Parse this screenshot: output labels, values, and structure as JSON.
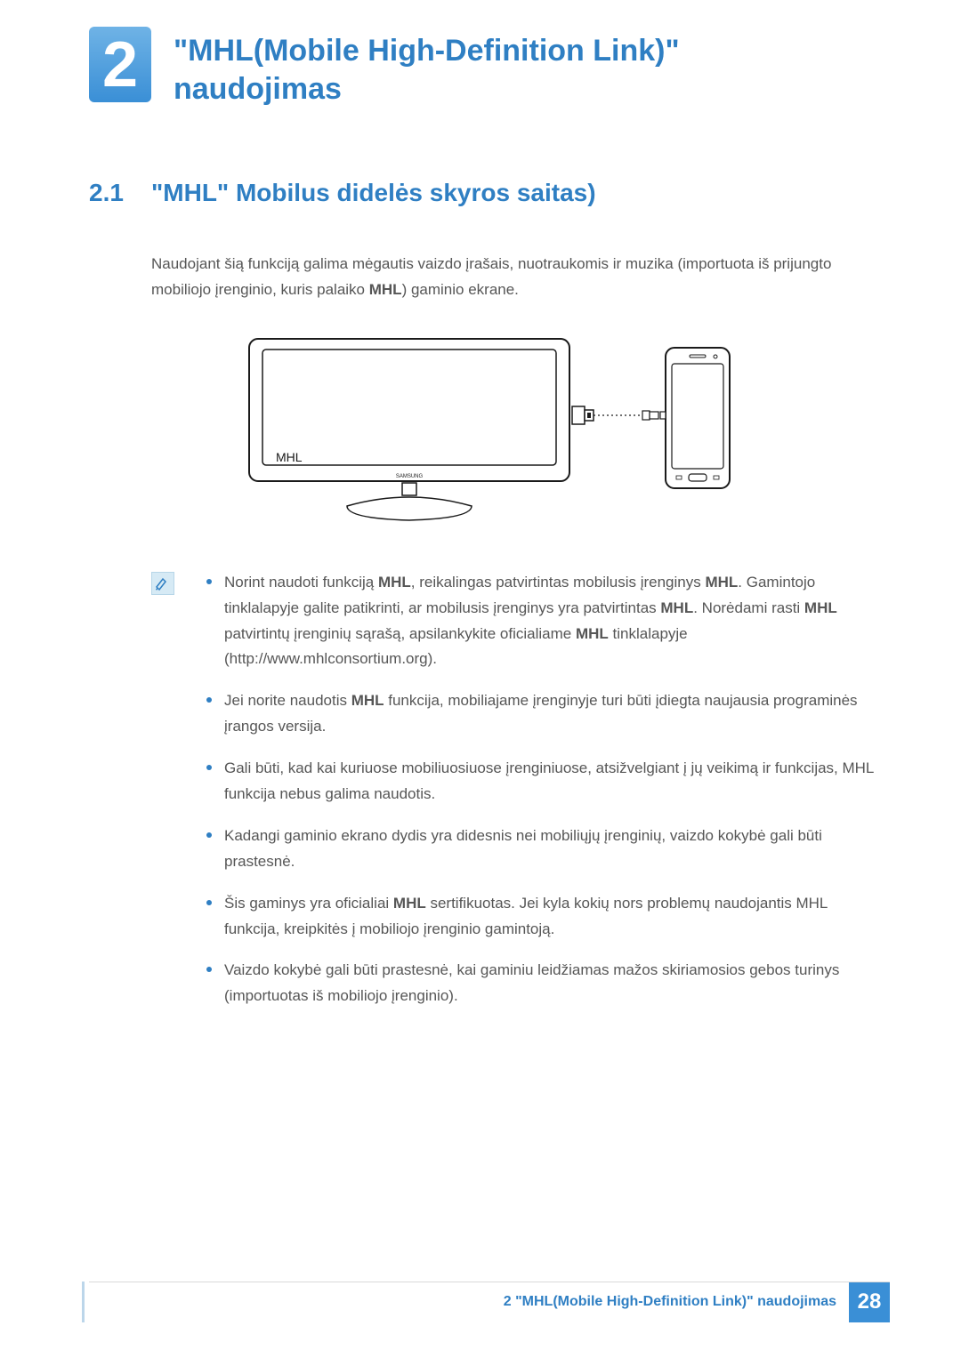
{
  "colors": {
    "accent_text": "#2f7fc3",
    "badge_bg": "#3a8fd6",
    "badge_bg_light": "#6fb3e6",
    "body_text": "#565656",
    "bullet": "#2f7fc3",
    "footer_text": "#2f7fc3",
    "footer_page_bg": "#3a8fd6",
    "left_accent": "#bcd6ea",
    "diagram_stroke": "#1a1a1a",
    "diagram_fill": "#ffffff"
  },
  "chapter": {
    "number": "2",
    "title_line1": "\"MHL(Mobile High-Definition Link)\"",
    "title_line2": "naudojimas"
  },
  "section": {
    "number": "2.1",
    "title": "\"MHL\" Mobilus didelės skyros saitas)"
  },
  "intro": {
    "pre": "Naudojant šią funkciją galima mėgautis vaizdo įrašais, nuotraukomis ir muzika (importuota iš prijungto mobiliojo įrenginio, kuris palaiko ",
    "bold": "MHL",
    "post": ") gaminio ekrane."
  },
  "diagram": {
    "port_label": "MHL",
    "brand_label": "SAMSUNG"
  },
  "notes": [
    "Norint naudoti funkciją <b>MHL</b>, reikalingas patvirtintas mobilusis įrenginys <b>MHL</b>. Gamintojo tinklalapyje galite patikrinti, ar mobilusis įrenginys yra patvirtintas <b>MHL</b>. Norėdami rasti <b>MHL</b> patvirtintų įrenginių sąrašą, apsilankykite oficialiame <b>MHL</b> tinklalapyje (http://www.mhlconsortium.org).",
    "Jei norite naudotis <b>MHL</b> funkcija, mobiliajame įrenginyje turi būti įdiegta naujausia programinės įrangos versija.",
    "Gali būti, kad kai kuriuose mobiliuosiuose įrenginiuose, atsižvelgiant į jų veikimą ir funkcijas, MHL funkcija nebus galima naudotis.",
    "Kadangi gaminio ekrano dydis yra didesnis nei mobiliųjų įrenginių, vaizdo kokybė gali būti prastesnė.",
    "Šis gaminys yra oficialiai <b>MHL</b> sertifikuotas. Jei kyla kokių nors problemų naudojantis MHL funkcija, kreipkitės į mobiliojo įrenginio gamintoją.",
    "Vaizdo kokybė gali būti prastesnė, kai gaminiu leidžiamas mažos skiriamosios gebos turinys (importuotas iš mobiliojo įrenginio)."
  ],
  "footer": {
    "text": "2 \"MHL(Mobile High-Definition Link)\" naudojimas",
    "page": "28"
  }
}
